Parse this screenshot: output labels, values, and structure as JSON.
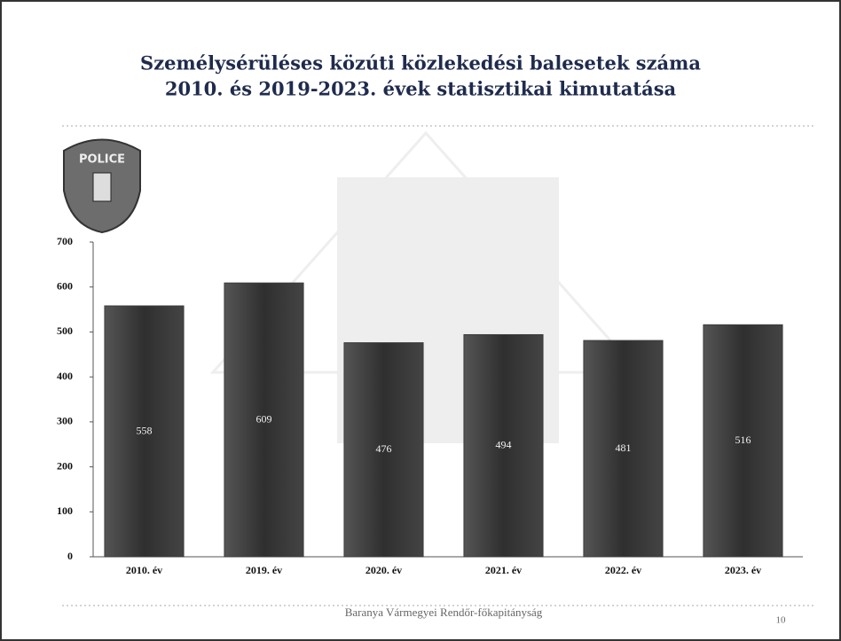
{
  "chart_data": {
    "type": "bar",
    "title": "Személysérüléses közúti közlekedési balesetek száma",
    "subtitle": "2010. és 2019-2023. évek statisztikai kimutatása",
    "categories": [
      "2010. év",
      "2019. év",
      "2020. év",
      "2021. év",
      "2022. év",
      "2023. év"
    ],
    "values": [
      558,
      609,
      476,
      494,
      481,
      516
    ],
    "color": "#3b3b3b",
    "ylim": [
      0,
      700
    ],
    "yticks": [
      0,
      100,
      200,
      300,
      400,
      500,
      600,
      700
    ],
    "grid": false
  },
  "logo": {
    "text": "POLICE"
  },
  "footer": {
    "text": "Baranya Vármegyei Rendőr-főkapitányság",
    "page": "10"
  }
}
